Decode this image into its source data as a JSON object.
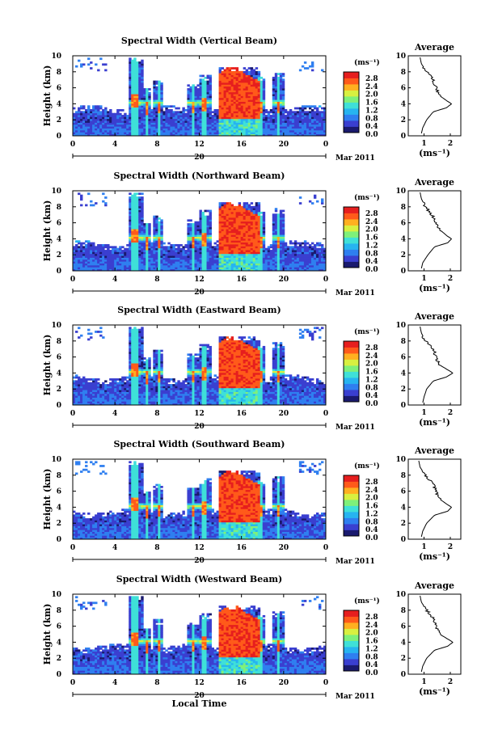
{
  "chart_data": [
    {
      "type": "heatmap",
      "title": "Spectral Width (Vertical Beam)",
      "average_title": "Average",
      "ylabel": "Height (km)",
      "xlabel": "",
      "day_label": "20",
      "month_label": "Mar 2011",
      "colorbar_unit": "(ms⁻¹)",
      "colorbar_ticks": [
        "2.8",
        "2.4",
        "2.0",
        "1.6",
        "1.2",
        "0.8",
        "0.4",
        "0.0"
      ],
      "x_ticks": [
        "0",
        "4",
        "8",
        "12",
        "16",
        "20",
        "0"
      ],
      "y_ticks": [
        "0",
        "2",
        "4",
        "6",
        "8",
        "10"
      ],
      "avg_x_ticks": [
        "1",
        "2"
      ],
      "avg_xlabel": "(ms⁻¹)",
      "xlim": [
        0,
        24
      ],
      "ylim": [
        0,
        10
      ],
      "avg_xlim": [
        0.4,
        2.4
      ],
      "profile": {
        "height": [
          0.3,
          1,
          2,
          3,
          3.5,
          4,
          4.3,
          5,
          6,
          7,
          8,
          9,
          9.8
        ],
        "width": [
          0.9,
          0.95,
          1.1,
          1.35,
          1.85,
          2.05,
          1.9,
          1.6,
          1.45,
          1.35,
          1.1,
          0.9,
          0.85
        ]
      }
    },
    {
      "type": "heatmap",
      "title": "Spectral Width (Northward Beam)",
      "average_title": "Average",
      "ylabel": "Height (km)",
      "xlabel": "",
      "day_label": "20",
      "month_label": "Mar 2011",
      "colorbar_unit": "(ms⁻¹)",
      "colorbar_ticks": [
        "2.8",
        "2.4",
        "2.0",
        "1.6",
        "1.2",
        "0.8",
        "0.4",
        "0.0"
      ],
      "x_ticks": [
        "0",
        "4",
        "8",
        "12",
        "16",
        "20",
        "0"
      ],
      "y_ticks": [
        "0",
        "2",
        "4",
        "6",
        "8",
        "10"
      ],
      "avg_x_ticks": [
        "1",
        "2"
      ],
      "avg_xlabel": "(ms⁻¹)",
      "xlim": [
        0,
        24
      ],
      "ylim": [
        0,
        10
      ],
      "avg_xlim": [
        0.4,
        2.4
      ],
      "profile": {
        "height": [
          0.3,
          1,
          2,
          3,
          3.5,
          4,
          4.3,
          5,
          6,
          7,
          8,
          9,
          9.8
        ],
        "width": [
          0.9,
          0.95,
          1.15,
          1.4,
          1.9,
          2.05,
          1.9,
          1.65,
          1.45,
          1.3,
          1.05,
          0.9,
          0.85
        ]
      }
    },
    {
      "type": "heatmap",
      "title": "Spectral Width (Eastward Beam)",
      "average_title": "Average",
      "ylabel": "Height (km)",
      "xlabel": "",
      "day_label": "20",
      "month_label": "Mar 2011",
      "colorbar_unit": "(ms⁻¹)",
      "colorbar_ticks": [
        "2.8",
        "2.4",
        "2.0",
        "1.6",
        "1.2",
        "0.8",
        "0.4",
        "0.0"
      ],
      "x_ticks": [
        "0",
        "4",
        "8",
        "12",
        "16",
        "20",
        "0"
      ],
      "y_ticks": [
        "0",
        "2",
        "4",
        "6",
        "8",
        "10"
      ],
      "avg_x_ticks": [
        "1",
        "2"
      ],
      "avg_xlabel": "(ms⁻¹)",
      "xlim": [
        0,
        24
      ],
      "ylim": [
        0,
        10
      ],
      "avg_xlim": [
        0.4,
        2.4
      ],
      "profile": {
        "height": [
          0.3,
          1,
          2,
          3,
          3.5,
          4,
          4.3,
          5,
          6,
          7,
          8,
          9,
          9.8
        ],
        "width": [
          0.95,
          1.0,
          1.1,
          1.35,
          1.85,
          2.1,
          1.95,
          1.6,
          1.45,
          1.35,
          1.05,
          0.9,
          0.85
        ]
      }
    },
    {
      "type": "heatmap",
      "title": "Spectral Width (Southward Beam)",
      "average_title": "Average",
      "ylabel": "Height (km)",
      "xlabel": "",
      "day_label": "20",
      "month_label": "Mar 2011",
      "colorbar_unit": "(ms⁻¹)",
      "colorbar_ticks": [
        "2.8",
        "2.4",
        "2.0",
        "1.6",
        "1.2",
        "0.8",
        "0.4",
        "0.0"
      ],
      "x_ticks": [
        "0",
        "4",
        "8",
        "12",
        "16",
        "20",
        "0"
      ],
      "y_ticks": [
        "0",
        "2",
        "4",
        "6",
        "8",
        "10"
      ],
      "avg_x_ticks": [
        "1",
        "2"
      ],
      "avg_xlabel": "(ms⁻¹)",
      "xlim": [
        0,
        24
      ],
      "ylim": [
        0,
        10
      ],
      "avg_xlim": [
        0.4,
        2.4
      ],
      "profile": {
        "height": [
          0.3,
          1,
          2,
          3,
          3.5,
          4,
          4.3,
          5,
          6,
          7,
          8,
          9,
          9.8
        ],
        "width": [
          0.9,
          0.95,
          1.1,
          1.4,
          1.9,
          2.05,
          1.9,
          1.6,
          1.45,
          1.35,
          1.05,
          0.85,
          0.8
        ]
      }
    },
    {
      "type": "heatmap",
      "title": "Spectral Width (Westward Beam)",
      "average_title": "Average",
      "ylabel": "Height (km)",
      "xlabel": "Local Time",
      "day_label": "20",
      "month_label": "Mar 2011",
      "colorbar_unit": "(ms⁻¹)",
      "colorbar_ticks": [
        "2.8",
        "2.4",
        "2.0",
        "1.6",
        "1.2",
        "0.8",
        "0.4",
        "0.0"
      ],
      "x_ticks": [
        "0",
        "4",
        "8",
        "12",
        "16",
        "20",
        "0"
      ],
      "y_ticks": [
        "0",
        "2",
        "4",
        "6",
        "8",
        "10"
      ],
      "avg_x_ticks": [
        "1",
        "2"
      ],
      "avg_xlabel": "(ms⁻¹)",
      "xlim": [
        0,
        24
      ],
      "ylim": [
        0,
        10
      ],
      "avg_xlim": [
        0.4,
        2.4
      ],
      "profile": {
        "height": [
          0.3,
          1,
          2,
          3,
          3.5,
          4,
          4.3,
          5,
          6,
          7,
          8,
          9,
          9.8
        ],
        "width": [
          0.9,
          0.95,
          1.1,
          1.4,
          1.9,
          2.1,
          1.95,
          1.6,
          1.45,
          1.35,
          1.1,
          0.9,
          0.85
        ]
      }
    }
  ],
  "colorscale": [
    "#1a1a6e",
    "#3a3fd0",
    "#2f7ff0",
    "#27b4f0",
    "#3fe0d8",
    "#7ff07a",
    "#d8f040",
    "#ffb020",
    "#ff5a1a",
    "#e61e1e"
  ]
}
